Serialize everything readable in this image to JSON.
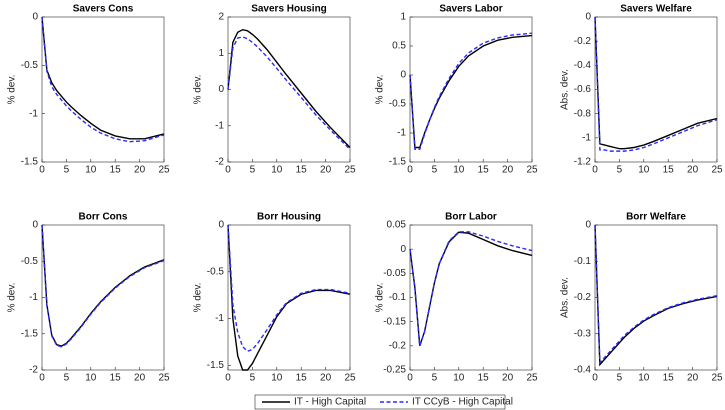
{
  "chart_data": [
    {
      "type": "line",
      "title": "Savers Cons",
      "ylabel": "% dev.",
      "x": [
        0,
        1,
        2,
        3,
        4,
        5,
        6,
        8,
        10,
        12,
        15,
        18,
        21,
        25
      ],
      "xlim": [
        0,
        25
      ],
      "xticks": [
        0,
        5,
        10,
        15,
        20,
        25
      ],
      "ylim": [
        -1.5,
        0
      ],
      "yticks": [
        -1.5,
        -1,
        -0.5,
        0
      ],
      "series": [
        {
          "name": "IT - High Capital",
          "color": "#000000",
          "linestyle": "solid",
          "values": [
            0,
            -0.55,
            -0.68,
            -0.76,
            -0.82,
            -0.88,
            -0.93,
            -1.02,
            -1.1,
            -1.17,
            -1.23,
            -1.26,
            -1.26,
            -1.21
          ]
        },
        {
          "name": "IT CCyB - High Capital",
          "color": "#2b2bff",
          "linestyle": "dashed",
          "values": [
            0,
            -0.56,
            -0.72,
            -0.8,
            -0.86,
            -0.92,
            -0.97,
            -1.06,
            -1.14,
            -1.2,
            -1.26,
            -1.29,
            -1.28,
            -1.22
          ]
        }
      ]
    },
    {
      "type": "line",
      "title": "Savers Housing",
      "ylabel": "% dev.",
      "x": [
        0,
        1,
        2,
        3,
        4,
        5,
        6,
        8,
        10,
        12,
        15,
        18,
        21,
        25
      ],
      "xlim": [
        0,
        25
      ],
      "xticks": [
        0,
        5,
        10,
        15,
        20,
        25
      ],
      "ylim": [
        -2,
        2
      ],
      "yticks": [
        -2,
        -1,
        0,
        1,
        2
      ],
      "series": [
        {
          "name": "IT - High Capital",
          "color": "#000000",
          "linestyle": "solid",
          "values": [
            0,
            1.3,
            1.58,
            1.65,
            1.62,
            1.52,
            1.4,
            1.1,
            0.75,
            0.4,
            -0.1,
            -0.6,
            -1.05,
            -1.6
          ]
        },
        {
          "name": "IT CCyB - High Capital",
          "color": "#2b2bff",
          "linestyle": "dashed",
          "values": [
            0,
            1.15,
            1.42,
            1.45,
            1.4,
            1.3,
            1.18,
            0.9,
            0.58,
            0.25,
            -0.22,
            -0.7,
            -1.12,
            -1.65
          ]
        }
      ]
    },
    {
      "type": "line",
      "title": "Savers Labor",
      "ylabel": "% dev.",
      "x": [
        0,
        1,
        2,
        3,
        4,
        5,
        6,
        8,
        10,
        12,
        15,
        18,
        21,
        25
      ],
      "xlim": [
        0,
        25
      ],
      "xticks": [
        0,
        5,
        10,
        15,
        20,
        25
      ],
      "ylim": [
        -1.5,
        1
      ],
      "yticks": [
        -1.5,
        -1,
        -0.5,
        0,
        0.5,
        1
      ],
      "series": [
        {
          "name": "IT - High Capital",
          "color": "#000000",
          "linestyle": "solid",
          "values": [
            0,
            -1.25,
            -1.25,
            -1.0,
            -0.78,
            -0.58,
            -0.4,
            -0.1,
            0.15,
            0.33,
            0.5,
            0.6,
            0.65,
            0.68
          ]
        },
        {
          "name": "IT CCyB - High Capital",
          "color": "#2b2bff",
          "linestyle": "dashed",
          "values": [
            0,
            -1.28,
            -1.28,
            -1.02,
            -0.78,
            -0.56,
            -0.37,
            -0.06,
            0.2,
            0.38,
            0.55,
            0.64,
            0.69,
            0.72
          ]
        }
      ]
    },
    {
      "type": "line",
      "title": "Savers Welfare",
      "ylabel": "Abs. dev.",
      "x": [
        0,
        1,
        2,
        3,
        4,
        5,
        6,
        8,
        10,
        12,
        15,
        18,
        21,
        25
      ],
      "xlim": [
        0,
        25
      ],
      "xticks": [
        0,
        5,
        10,
        15,
        20,
        25
      ],
      "ylim": [
        -1.2,
        0
      ],
      "yticks": [
        -1.2,
        -1,
        -0.8,
        -0.6,
        -0.4,
        -0.2,
        0
      ],
      "series": [
        {
          "name": "IT - High Capital",
          "color": "#000000",
          "linestyle": "solid",
          "values": [
            0,
            -1.05,
            -1.06,
            -1.07,
            -1.08,
            -1.09,
            -1.09,
            -1.08,
            -1.06,
            -1.03,
            -0.98,
            -0.93,
            -0.88,
            -0.84
          ]
        },
        {
          "name": "IT CCyB - High Capital",
          "color": "#2b2bff",
          "linestyle": "dashed",
          "values": [
            0,
            -1.1,
            -1.1,
            -1.11,
            -1.11,
            -1.11,
            -1.11,
            -1.1,
            -1.08,
            -1.05,
            -1.0,
            -0.95,
            -0.9,
            -0.85
          ]
        }
      ]
    },
    {
      "type": "line",
      "title": "Borr Cons",
      "ylabel": "% dev.",
      "x": [
        0,
        1,
        2,
        3,
        4,
        5,
        6,
        8,
        10,
        12,
        15,
        18,
        21,
        25
      ],
      "xlim": [
        0,
        25
      ],
      "xticks": [
        0,
        5,
        10,
        15,
        20,
        25
      ],
      "ylim": [
        -2,
        0
      ],
      "yticks": [
        -2,
        -1.5,
        -1,
        -0.5,
        0
      ],
      "series": [
        {
          "name": "IT - High Capital",
          "color": "#000000",
          "linestyle": "solid",
          "values": [
            0,
            -1.1,
            -1.52,
            -1.65,
            -1.67,
            -1.63,
            -1.56,
            -1.4,
            -1.22,
            -1.06,
            -0.86,
            -0.7,
            -0.58,
            -0.48
          ]
        },
        {
          "name": "IT CCyB - High Capital",
          "color": "#2b2bff",
          "linestyle": "dashed",
          "values": [
            0,
            -1.11,
            -1.53,
            -1.66,
            -1.68,
            -1.64,
            -1.57,
            -1.41,
            -1.23,
            -1.07,
            -0.87,
            -0.71,
            -0.59,
            -0.49
          ]
        }
      ]
    },
    {
      "type": "line",
      "title": "Borr Housing",
      "ylabel": "% dev.",
      "x": [
        0,
        1,
        2,
        3,
        4,
        5,
        6,
        8,
        10,
        12,
        15,
        18,
        21,
        25
      ],
      "xlim": [
        0,
        25
      ],
      "xticks": [
        0,
        5,
        10,
        15,
        20,
        25
      ],
      "ylim": [
        -1.55,
        0
      ],
      "yticks": [
        -1.5,
        -1,
        -0.5,
        0
      ],
      "series": [
        {
          "name": "IT - High Capital",
          "color": "#000000",
          "linestyle": "solid",
          "values": [
            0,
            -1.0,
            -1.4,
            -1.55,
            -1.55,
            -1.48,
            -1.38,
            -1.18,
            -0.98,
            -0.84,
            -0.74,
            -0.7,
            -0.7,
            -0.74
          ]
        },
        {
          "name": "IT CCyB - High Capital",
          "color": "#2b2bff",
          "linestyle": "dashed",
          "values": [
            0,
            -0.85,
            -1.15,
            -1.3,
            -1.35,
            -1.33,
            -1.27,
            -1.12,
            -0.96,
            -0.83,
            -0.73,
            -0.69,
            -0.69,
            -0.73
          ]
        }
      ]
    },
    {
      "type": "line",
      "title": "Borr Labor",
      "ylabel": "% dev.",
      "x": [
        0,
        1,
        2,
        3,
        4,
        5,
        6,
        8,
        10,
        12,
        15,
        18,
        21,
        25
      ],
      "xlim": [
        0,
        25
      ],
      "xticks": [
        0,
        5,
        10,
        15,
        20,
        25
      ],
      "ylim": [
        -0.25,
        0.05
      ],
      "yticks": [
        -0.25,
        -0.2,
        -0.15,
        -0.1,
        -0.05,
        0,
        0.05
      ],
      "series": [
        {
          "name": "IT - High Capital",
          "color": "#000000",
          "linestyle": "solid",
          "values": [
            0,
            -0.08,
            -0.2,
            -0.17,
            -0.12,
            -0.07,
            -0.03,
            0.015,
            0.035,
            0.033,
            0.02,
            0.007,
            -0.003,
            -0.013
          ]
        },
        {
          "name": "IT CCyB - High Capital",
          "color": "#2b2bff",
          "linestyle": "dashed",
          "values": [
            0,
            -0.08,
            -0.2,
            -0.17,
            -0.12,
            -0.07,
            -0.03,
            0.017,
            0.036,
            0.036,
            0.027,
            0.016,
            0.007,
            -0.003
          ]
        }
      ]
    },
    {
      "type": "line",
      "title": "Borr Welfare",
      "ylabel": "Abs. dev.",
      "x": [
        0,
        1,
        2,
        3,
        4,
        5,
        6,
        8,
        10,
        12,
        15,
        18,
        21,
        25
      ],
      "xlim": [
        0,
        25
      ],
      "xticks": [
        0,
        5,
        10,
        15,
        20,
        25
      ],
      "ylim": [
        -0.4,
        0
      ],
      "yticks": [
        -0.4,
        -0.3,
        -0.2,
        -0.1,
        0
      ],
      "series": [
        {
          "name": "IT - High Capital",
          "color": "#000000",
          "linestyle": "solid",
          "values": [
            0,
            -0.385,
            -0.37,
            -0.355,
            -0.34,
            -0.325,
            -0.31,
            -0.285,
            -0.265,
            -0.25,
            -0.23,
            -0.217,
            -0.207,
            -0.197
          ]
        },
        {
          "name": "IT CCyB - High Capital",
          "color": "#2b2bff",
          "linestyle": "dashed",
          "values": [
            0,
            -0.38,
            -0.365,
            -0.35,
            -0.335,
            -0.32,
            -0.305,
            -0.282,
            -0.262,
            -0.247,
            -0.228,
            -0.215,
            -0.205,
            -0.195
          ]
        }
      ]
    }
  ]
}
